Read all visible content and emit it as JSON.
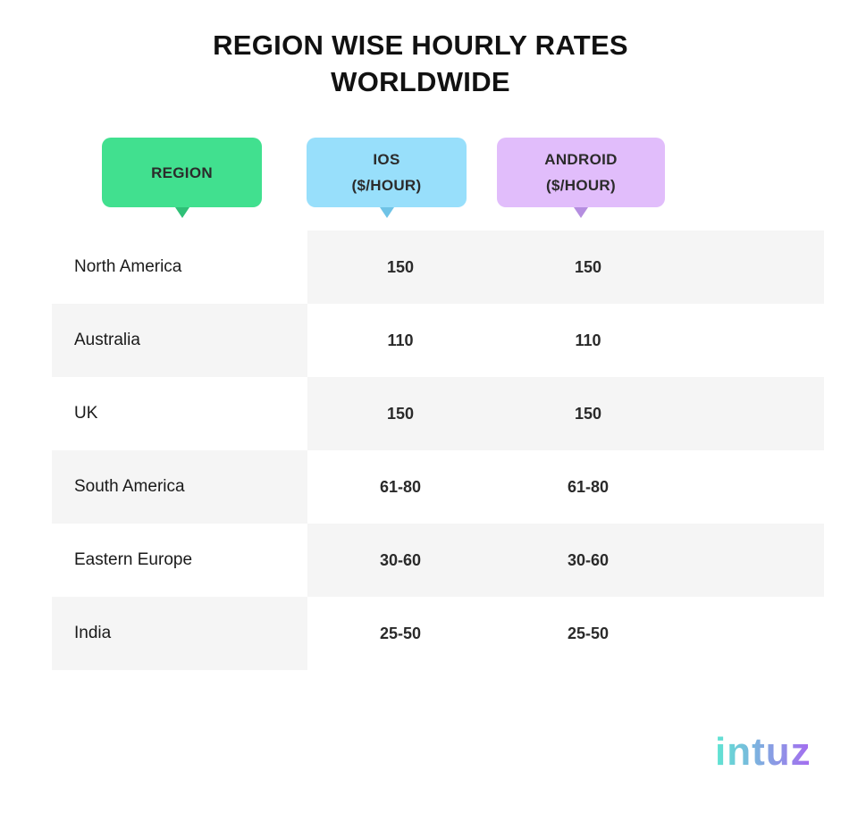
{
  "title": {
    "line1": "REGION WISE HOURLY RATES",
    "line2": "WORLDWIDE"
  },
  "headers": {
    "region": "REGION",
    "ios_line1": "IOS",
    "ios_line2": "($/HOUR)",
    "android_line1": "ANDROID",
    "android_line2": "($/HOUR)"
  },
  "colors": {
    "region_header": "#41e08f",
    "ios_header": "#98dffb",
    "android_header": "#e1bdfb",
    "row_band": "#f5f5f5",
    "logo_gradient_start": "#5fe6d2",
    "logo_gradient_end": "#a56bf0"
  },
  "chart_data": {
    "type": "table",
    "title": "REGION WISE HOURLY RATES WORLDWIDE",
    "columns": [
      "REGION",
      "IOS ($/HOUR)",
      "ANDROID ($/HOUR)"
    ],
    "rows": [
      {
        "region": "North America",
        "ios": "150",
        "android": "150"
      },
      {
        "region": "Australia",
        "ios": "110",
        "android": "110"
      },
      {
        "region": "UK",
        "ios": "150",
        "android": "150"
      },
      {
        "region": "South America",
        "ios": "61-80",
        "android": "61-80"
      },
      {
        "region": "Eastern Europe",
        "ios": "30-60",
        "android": "30-60"
      },
      {
        "region": "India",
        "ios": "25-50",
        "android": "25-50"
      }
    ]
  },
  "logo": {
    "name": "intuz-logo",
    "text": "intuz"
  }
}
